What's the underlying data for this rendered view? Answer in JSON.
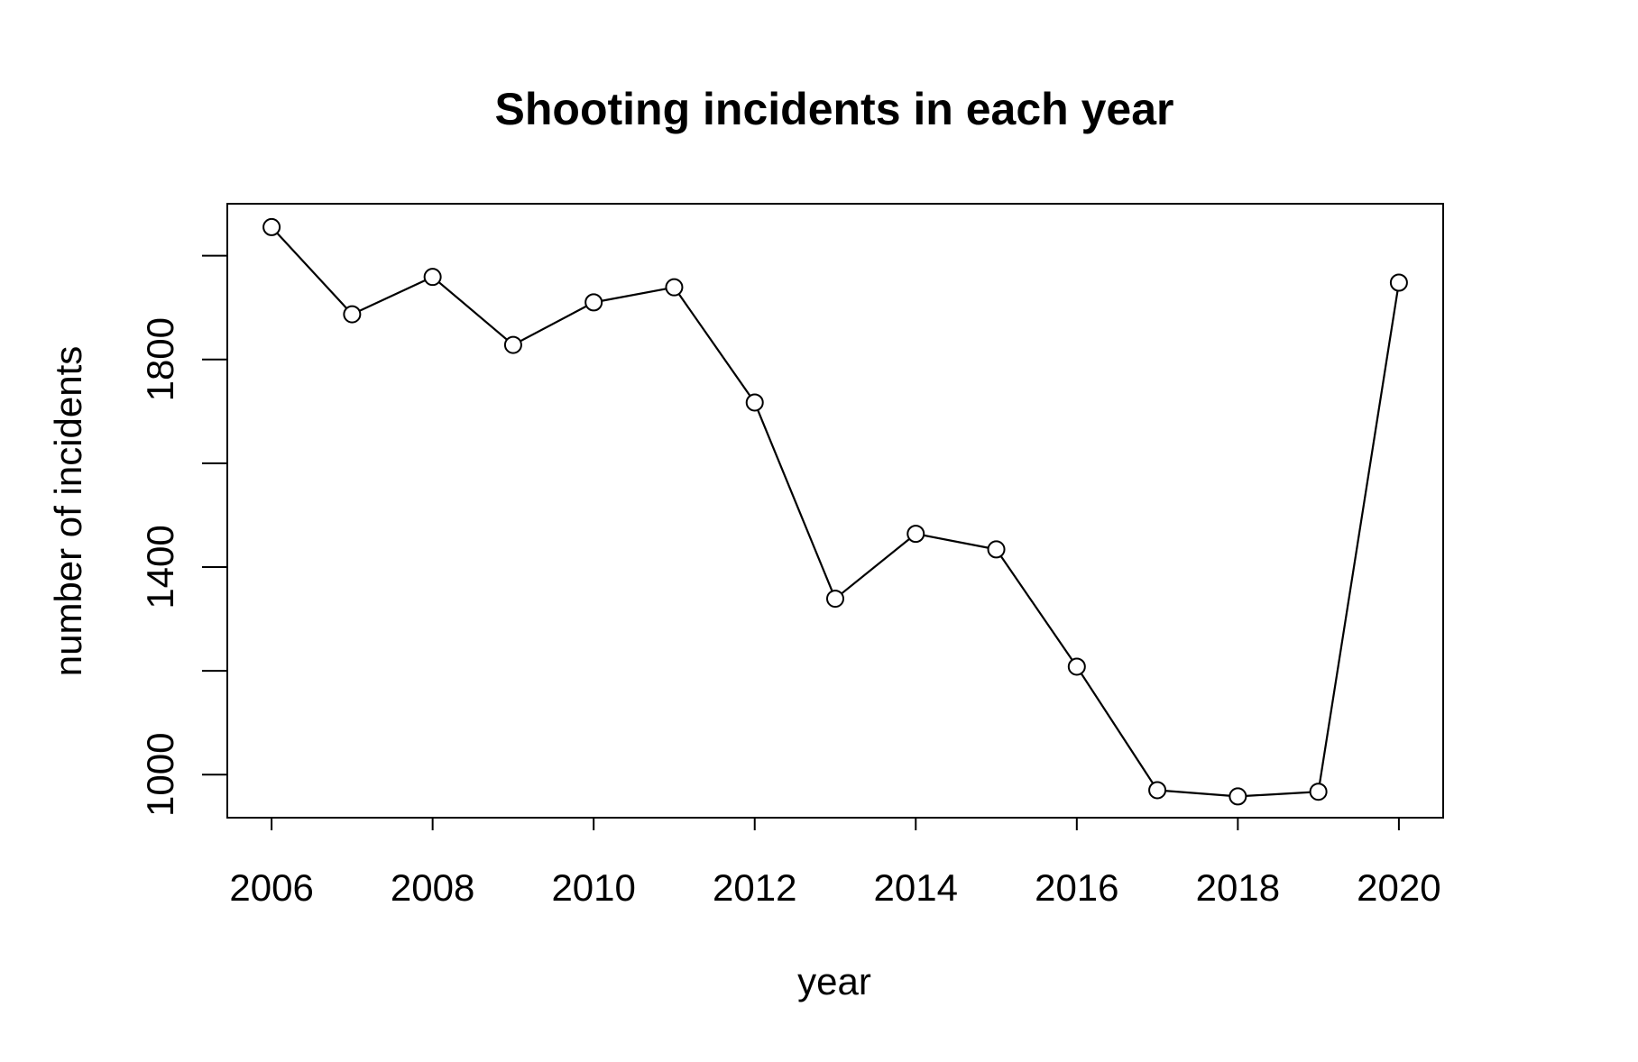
{
  "chart_data": {
    "type": "line",
    "title": "Shooting incidents in each year",
    "xlabel": "year",
    "ylabel": "number of incidents",
    "x": [
      2006,
      2007,
      2008,
      2009,
      2010,
      2011,
      2012,
      2013,
      2014,
      2015,
      2016,
      2017,
      2018,
      2019,
      2020
    ],
    "series": [
      {
        "name": "",
        "values": [
          2055,
          1887,
          1959,
          1828,
          1910,
          1939,
          1717,
          1339,
          1464,
          1434,
          1208,
          970,
          958,
          967,
          1948
        ]
      }
    ],
    "xlim": [
      2005.45,
      2020.55
    ],
    "ylim": [
      917,
      2100
    ],
    "xticks": [
      2006,
      2008,
      2010,
      2012,
      2014,
      2016,
      2018,
      2020
    ],
    "xtick_labels": [
      "2006",
      "2008",
      "2010",
      "2012",
      "2014",
      "2016",
      "2018",
      "2020"
    ],
    "yticks": [
      1000,
      1200,
      1400,
      1600,
      1800,
      2000
    ],
    "ytick_labels": [
      "1000",
      "",
      "1400",
      "",
      "1800",
      ""
    ],
    "grid": false,
    "legend": "none",
    "marker": "open-circle",
    "colors": {
      "line": "#000000",
      "marker": "#000000",
      "axes": "#000000",
      "background": "#ffffff"
    }
  }
}
